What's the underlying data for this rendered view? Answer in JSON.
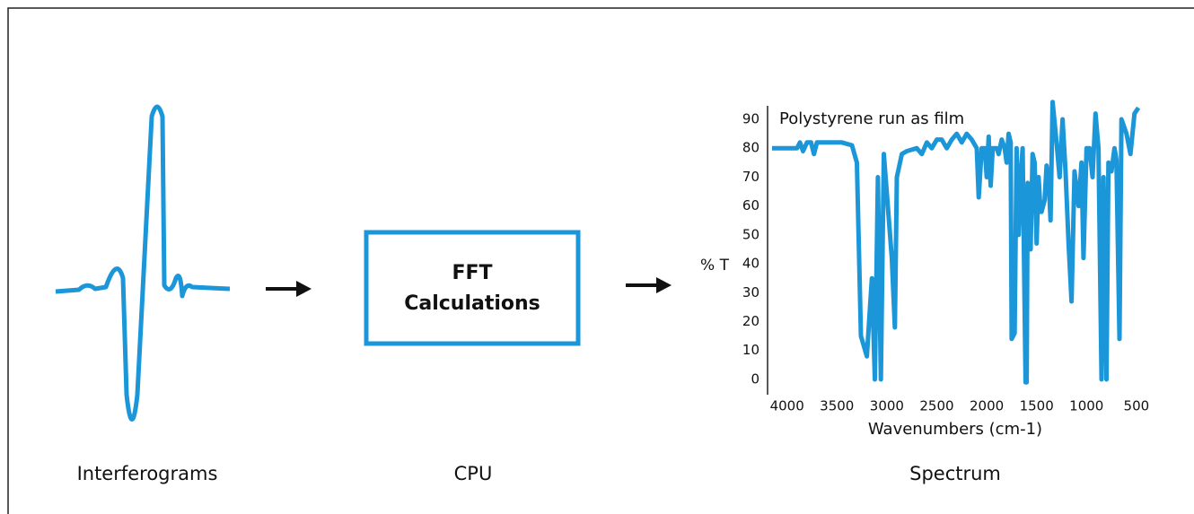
{
  "labels": {
    "interferograms": "Interferograms",
    "cpu": "CPU",
    "spectrum": "Spectrum"
  },
  "box": {
    "lines": [
      "FFT",
      "Calculations"
    ]
  },
  "chart_data": {
    "type": "line",
    "annotation": "Polystyrene run as film",
    "x_label": "Wavenumbers (cm-1)",
    "y_label": "% T",
    "color": "#1b96d8",
    "x": [
      4150,
      3900,
      3870,
      3840,
      3800,
      3760,
      3730,
      3700,
      3600,
      3450,
      3350,
      3300,
      3260,
      3200,
      3150,
      3120,
      3090,
      3060,
      3030,
      2950,
      2920,
      2900,
      2850,
      2800,
      2700,
      2650,
      2600,
      2550,
      2500,
      2450,
      2400,
      2350,
      2300,
      2250,
      2200,
      2150,
      2100,
      2080,
      2050,
      2020,
      2000,
      1980,
      1960,
      1940,
      1900,
      1880,
      1850,
      1820,
      1800,
      1780,
      1760,
      1750,
      1720,
      1700,
      1680,
      1660,
      1640,
      1610,
      1600,
      1590,
      1560,
      1540,
      1520,
      1500,
      1480,
      1460,
      1450,
      1420,
      1400,
      1380,
      1360,
      1340,
      1300,
      1270,
      1240,
      1210,
      1180,
      1150,
      1120,
      1080,
      1050,
      1030,
      1000,
      970,
      940,
      910,
      880,
      850,
      830,
      800,
      780,
      750,
      720,
      700,
      670,
      650,
      600,
      560,
      520,
      480
    ],
    "values": [
      80,
      80,
      82,
      79,
      82,
      82,
      78,
      82,
      82,
      82,
      81,
      75,
      15,
      8,
      35,
      0,
      70,
      0,
      78,
      42,
      18,
      70,
      78,
      79,
      80,
      78,
      82,
      80,
      83,
      83,
      80,
      83,
      85,
      82,
      85,
      83,
      80,
      63,
      80,
      80,
      70,
      84,
      67,
      80,
      80,
      78,
      83,
      80,
      75,
      85,
      82,
      14,
      16,
      80,
      50,
      70,
      80,
      -1,
      -1,
      68,
      45,
      78,
      75,
      47,
      70,
      58,
      58,
      62,
      74,
      70,
      55,
      96,
      82,
      70,
      90,
      72,
      47,
      27,
      72,
      60,
      75,
      42,
      80,
      80,
      70,
      92,
      80,
      0,
      70,
      0,
      75,
      72,
      80,
      76,
      14,
      90,
      85,
      78,
      92,
      94
    ],
    "xlim": [
      4150,
      400
    ],
    "ylim": [
      -2,
      96
    ],
    "xticks": [
      4000,
      3500,
      3000,
      2500,
      2000,
      1500,
      1000,
      500
    ],
    "yticks": [
      0,
      10,
      20,
      30,
      40,
      50,
      60,
      70,
      80,
      90
    ]
  }
}
